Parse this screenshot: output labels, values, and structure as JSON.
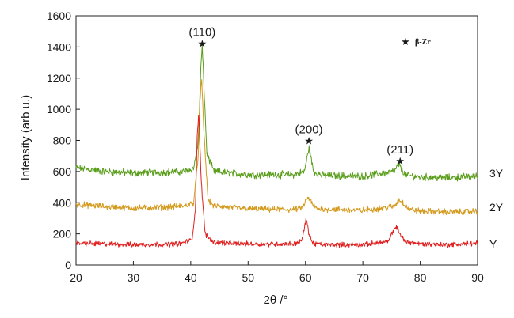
{
  "chart_data": {
    "type": "line",
    "title": "",
    "xlabel": "2θ /°",
    "ylabel": "Intensity (arb u.)",
    "xlim": [
      20,
      90
    ],
    "ylim": [
      0,
      1600
    ],
    "xticks": [
      20,
      30,
      40,
      50,
      60,
      70,
      80,
      90
    ],
    "yticks": [
      0,
      200,
      400,
      600,
      800,
      1000,
      1200,
      1400,
      1600
    ],
    "grid": false,
    "legend": {
      "marker": "star",
      "label": "β-Zr",
      "position": "top-right"
    },
    "series": [
      {
        "name": "3Y",
        "color": "#5a9e1c",
        "baseline": 590,
        "noise": 35,
        "x": [
          20,
          25,
          30,
          35,
          39,
          40.5,
          41.3,
          41.8,
          42.0,
          42.3,
          42.8,
          44,
          50,
          58,
          59.8,
          60.4,
          60.6,
          60.9,
          61.4,
          63,
          70,
          75.5,
          76.3,
          76.8,
          77.6,
          80,
          85,
          90
        ],
        "y": [
          625,
          600,
          590,
          595,
          600,
          620,
          780,
          1300,
          1400,
          1150,
          720,
          600,
          580,
          580,
          600,
          710,
          760,
          700,
          600,
          575,
          570,
          600,
          650,
          610,
          575,
          565,
          560,
          570
        ]
      },
      {
        "name": "2Y",
        "color": "#d49a1e",
        "baseline": 370,
        "noise": 30,
        "x": [
          20,
          25,
          30,
          35,
          39,
          40.5,
          41.3,
          41.6,
          41.9,
          42.3,
          43,
          44,
          50,
          58,
          59.5,
          60.2,
          60.6,
          61.2,
          62,
          70,
          75.5,
          76.3,
          77,
          78,
          80,
          85,
          90
        ],
        "y": [
          390,
          375,
          365,
          370,
          380,
          400,
          700,
          1050,
          1190,
          850,
          420,
          380,
          360,
          355,
          370,
          420,
          430,
          390,
          360,
          350,
          375,
          420,
          400,
          360,
          345,
          340,
          345
        ]
      },
      {
        "name": "Y",
        "color": "#e02020",
        "baseline": 135,
        "noise": 25,
        "x": [
          20,
          30,
          38,
          40.2,
          40.8,
          41.1,
          41.4,
          41.8,
          42.5,
          44,
          50,
          58,
          59.4,
          59.9,
          60.1,
          60.5,
          61.2,
          63,
          70,
          74.5,
          75.3,
          75.7,
          76.2,
          77.3,
          80,
          85,
          90
        ],
        "y": [
          140,
          130,
          135,
          160,
          350,
          800,
          990,
          550,
          200,
          145,
          135,
          135,
          160,
          250,
          300,
          220,
          140,
          130,
          130,
          150,
          220,
          245,
          220,
          150,
          135,
          130,
          140
        ]
      }
    ],
    "annotations": [
      {
        "text": "(110)",
        "x": 42.0,
        "y": 1425
      },
      {
        "text": "(200)",
        "x": 60.6,
        "y": 800
      },
      {
        "text": "(211)",
        "x": 76.5,
        "y": 670
      }
    ]
  }
}
